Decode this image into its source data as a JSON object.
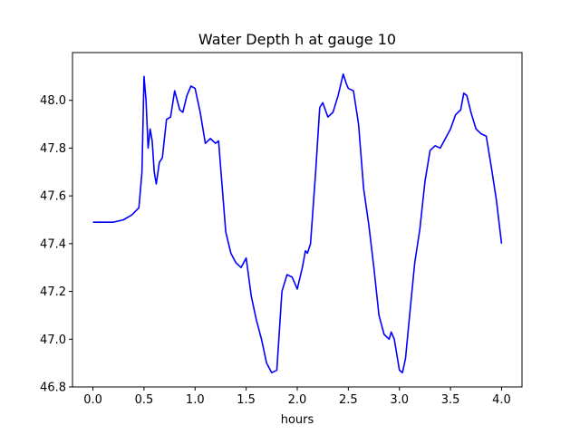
{
  "chart_data": {
    "type": "line",
    "title": "Water Depth h at gauge 10",
    "xlabel": "hours",
    "ylabel": "",
    "xlim": [
      -0.2,
      4.2
    ],
    "ylim": [
      46.8,
      48.2
    ],
    "xticks": [
      0.0,
      0.5,
      1.0,
      1.5,
      2.0,
      2.5,
      3.0,
      3.5,
      4.0
    ],
    "xtick_labels": [
      "0.0",
      "0.5",
      "1.0",
      "1.5",
      "2.0",
      "2.5",
      "3.0",
      "3.5",
      "4.0"
    ],
    "yticks": [
      46.8,
      47.0,
      47.2,
      47.4,
      47.6,
      47.8,
      48.0
    ],
    "ytick_labels": [
      "46.8",
      "47.0",
      "47.2",
      "47.4",
      "47.6",
      "47.8",
      "48.0"
    ],
    "grid": false,
    "series": [
      {
        "color": "#0000ff",
        "x": [
          0.0,
          0.2,
          0.3,
          0.38,
          0.45,
          0.48,
          0.5,
          0.52,
          0.54,
          0.56,
          0.58,
          0.6,
          0.62,
          0.65,
          0.68,
          0.72,
          0.76,
          0.8,
          0.85,
          0.88,
          0.92,
          0.96,
          1.0,
          1.05,
          1.1,
          1.15,
          1.2,
          1.23,
          1.25,
          1.3,
          1.35,
          1.4,
          1.45,
          1.5,
          1.55,
          1.6,
          1.65,
          1.7,
          1.75,
          1.8,
          1.85,
          1.9,
          1.95,
          2.0,
          2.05,
          2.08,
          2.1,
          2.13,
          2.18,
          2.22,
          2.25,
          2.3,
          2.35,
          2.4,
          2.45,
          2.48,
          2.5,
          2.55,
          2.6,
          2.65,
          2.7,
          2.75,
          2.8,
          2.85,
          2.9,
          2.92,
          2.95,
          3.0,
          3.03,
          3.06,
          3.1,
          3.15,
          3.2,
          3.25,
          3.3,
          3.35,
          3.4,
          3.45,
          3.5,
          3.55,
          3.6,
          3.63,
          3.66,
          3.7,
          3.75,
          3.8,
          3.85,
          3.9,
          3.95,
          4.0
        ],
        "y": [
          47.49,
          47.49,
          47.5,
          47.52,
          47.55,
          47.7,
          48.1,
          48.0,
          47.8,
          47.88,
          47.83,
          47.7,
          47.65,
          47.74,
          47.76,
          47.92,
          47.93,
          48.04,
          47.96,
          47.95,
          48.02,
          48.06,
          48.05,
          47.95,
          47.82,
          47.84,
          47.82,
          47.83,
          47.72,
          47.45,
          47.36,
          47.32,
          47.3,
          47.34,
          47.18,
          47.08,
          47.0,
          46.9,
          46.86,
          46.87,
          47.2,
          47.27,
          47.26,
          47.21,
          47.3,
          47.37,
          47.36,
          47.4,
          47.7,
          47.97,
          47.99,
          47.93,
          47.95,
          48.02,
          48.11,
          48.07,
          48.05,
          48.04,
          47.9,
          47.63,
          47.48,
          47.3,
          47.1,
          47.02,
          47.0,
          47.03,
          47.0,
          46.87,
          46.86,
          46.92,
          47.1,
          47.32,
          47.46,
          47.66,
          47.79,
          47.81,
          47.8,
          47.84,
          47.88,
          47.94,
          47.96,
          48.03,
          48.02,
          47.95,
          47.88,
          47.86,
          47.85,
          47.72,
          47.58,
          47.4
        ]
      }
    ]
  }
}
